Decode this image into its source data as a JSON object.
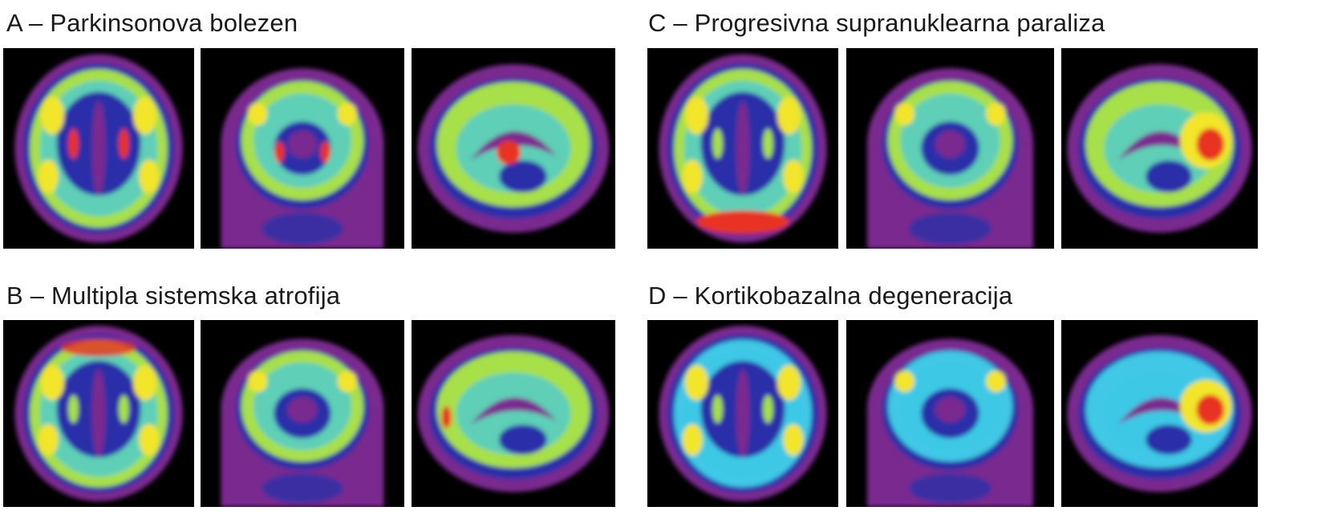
{
  "panels": [
    {
      "letter": "A",
      "title": "A – Parkinsonova bolezen"
    },
    {
      "letter": "B",
      "title": "B – Multipla sistemska atrofija"
    },
    {
      "letter": "C",
      "title": "C – Progresivna supranuklearna paraliza"
    },
    {
      "letter": "D",
      "title": "D – Kortikobazalna degeneracija"
    }
  ],
  "views": [
    "axial",
    "coronal",
    "sagittal"
  ],
  "colors": {
    "background": "#000000",
    "head_outline": "#7a2a8f",
    "low": "#2b2fa8",
    "mid_low": "#3fc8e6",
    "mid": "#a8e04a",
    "mid_high": "#f2e52a",
    "high": "#e83020"
  }
}
